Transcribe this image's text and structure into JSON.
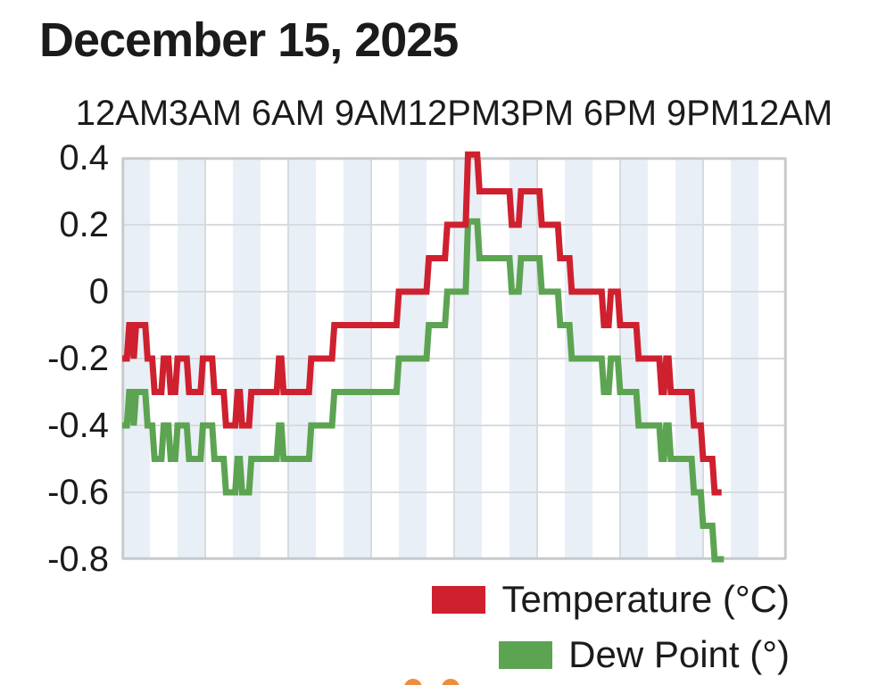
{
  "header": {
    "date_title": "December 15, 2025"
  },
  "chart_data": {
    "type": "line",
    "title": "December 15, 2025",
    "line_style": "stepped (5-minute samples)",
    "grid": true,
    "x_axis": {
      "position": "top",
      "tick_labels": [
        "12AM",
        "3AM",
        "6AM",
        "9AM",
        "12PM",
        "3PM",
        "6PM",
        "9PM",
        "12AM"
      ],
      "tick_hours": [
        0,
        3,
        6,
        9,
        12,
        15,
        18,
        21,
        24
      ],
      "range_hours": [
        0,
        24
      ],
      "hour_band_even_color": "#e9eff6",
      "hour_band_odd_color": "#ffffff"
    },
    "y_axis": {
      "tick_labels": [
        "0.4",
        "0.2",
        "0",
        "-0.2",
        "-0.4",
        "-0.6",
        "-0.8"
      ],
      "tick_values": [
        0.4,
        0.2,
        0,
        -0.2,
        -0.4,
        -0.6,
        -0.8
      ],
      "range": [
        -0.8,
        0.4
      ]
    },
    "series": [
      {
        "name": "Temperature (°C)",
        "color": "#cf202f",
        "end_minute": 1300,
        "points_minute_value": [
          [
            0,
            -0.2
          ],
          [
            15,
            -0.1
          ],
          [
            25,
            -0.2
          ],
          [
            30,
            -0.1
          ],
          [
            55,
            -0.2
          ],
          [
            70,
            -0.3
          ],
          [
            90,
            -0.2
          ],
          [
            105,
            -0.3
          ],
          [
            120,
            -0.2
          ],
          [
            145,
            -0.3
          ],
          [
            175,
            -0.2
          ],
          [
            200,
            -0.3
          ],
          [
            225,
            -0.4
          ],
          [
            250,
            -0.3
          ],
          [
            260,
            -0.4
          ],
          [
            280,
            -0.3
          ],
          [
            340,
            -0.2
          ],
          [
            350,
            -0.3
          ],
          [
            410,
            -0.2
          ],
          [
            460,
            -0.1
          ],
          [
            600,
            0
          ],
          [
            665,
            0.1
          ],
          [
            705,
            0.2
          ],
          [
            750,
            0.41
          ],
          [
            775,
            0.3
          ],
          [
            845,
            0.2
          ],
          [
            865,
            0.3
          ],
          [
            910,
            0.2
          ],
          [
            950,
            0.1
          ],
          [
            975,
            0
          ],
          [
            1045,
            -0.1
          ],
          [
            1060,
            0
          ],
          [
            1080,
            -0.1
          ],
          [
            1120,
            -0.2
          ],
          [
            1170,
            -0.3
          ],
          [
            1180,
            -0.2
          ],
          [
            1190,
            -0.3
          ],
          [
            1240,
            -0.4
          ],
          [
            1260,
            -0.5
          ],
          [
            1285,
            -0.6
          ]
        ]
      },
      {
        "name": "Dew Point (°)",
        "color": "#5ca452",
        "end_minute": 1305,
        "points_minute_value": [
          [
            0,
            -0.4
          ],
          [
            15,
            -0.3
          ],
          [
            25,
            -0.4
          ],
          [
            30,
            -0.3
          ],
          [
            55,
            -0.4
          ],
          [
            70,
            -0.5
          ],
          [
            90,
            -0.4
          ],
          [
            105,
            -0.5
          ],
          [
            120,
            -0.4
          ],
          [
            145,
            -0.5
          ],
          [
            175,
            -0.4
          ],
          [
            200,
            -0.5
          ],
          [
            225,
            -0.6
          ],
          [
            250,
            -0.5
          ],
          [
            260,
            -0.6
          ],
          [
            280,
            -0.5
          ],
          [
            340,
            -0.4
          ],
          [
            350,
            -0.5
          ],
          [
            410,
            -0.4
          ],
          [
            460,
            -0.3
          ],
          [
            600,
            -0.2
          ],
          [
            665,
            -0.1
          ],
          [
            705,
            0
          ],
          [
            750,
            0.21
          ],
          [
            775,
            0.1
          ],
          [
            845,
            0
          ],
          [
            865,
            0.1
          ],
          [
            910,
            0
          ],
          [
            950,
            -0.1
          ],
          [
            975,
            -0.2
          ],
          [
            1045,
            -0.3
          ],
          [
            1060,
            -0.2
          ],
          [
            1080,
            -0.3
          ],
          [
            1120,
            -0.4
          ],
          [
            1170,
            -0.5
          ],
          [
            1180,
            -0.4
          ],
          [
            1190,
            -0.5
          ],
          [
            1240,
            -0.6
          ],
          [
            1260,
            -0.7
          ],
          [
            1285,
            -0.8
          ]
        ]
      }
    ],
    "legend": {
      "position": "bottom-right",
      "entries": [
        {
          "label": "Temperature (°C)",
          "color": "#cf202f"
        },
        {
          "label": "Dew Point (°)",
          "color": "#5ca452"
        }
      ]
    },
    "gridline_color": "#d8dbde",
    "border_color": "#c7cacd"
  },
  "decorations": {
    "partial_marker_color": "#ee8d3c",
    "partial_marker_count": 2
  }
}
